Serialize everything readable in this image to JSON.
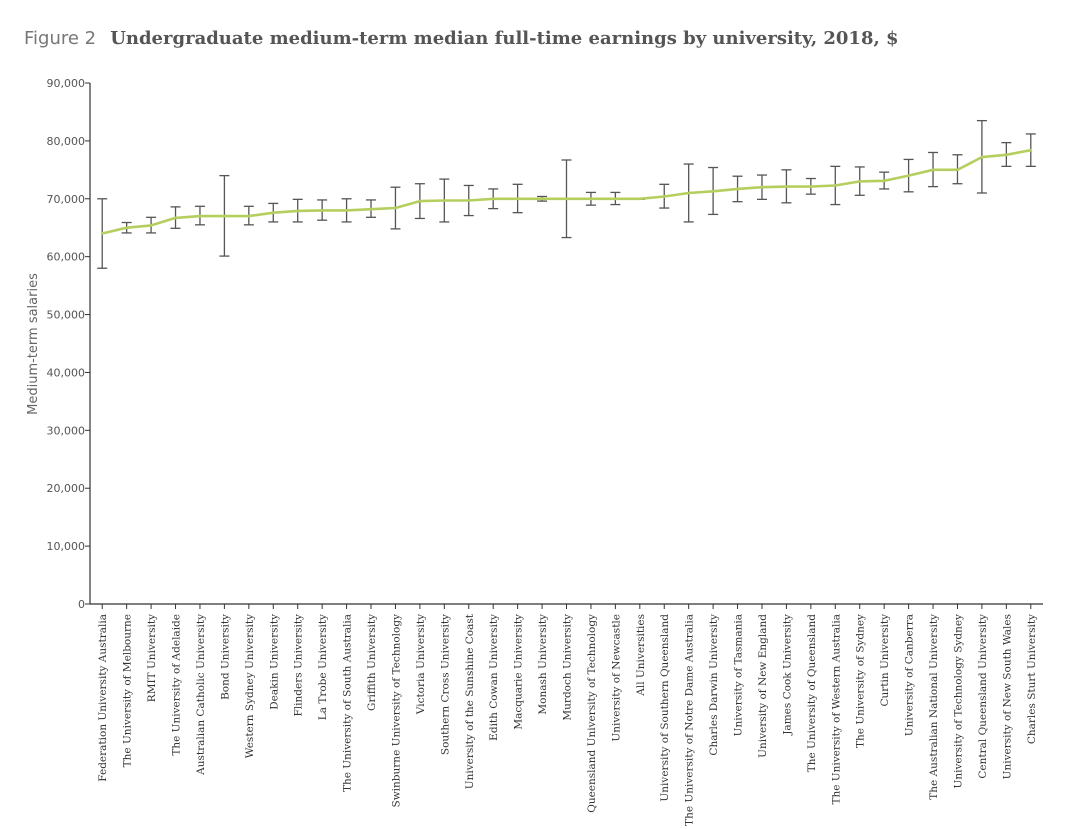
{
  "figure": {
    "label": "Figure 2",
    "title": "Undergraduate medium-term median full-time earnings by university, 2018, $"
  },
  "colors": {
    "line": "#b5cf5f",
    "error_bar": "#555555",
    "axis": "#333333"
  },
  "chart_data": {
    "type": "line",
    "title": "Undergraduate medium-term median full-time earnings by university, 2018, $",
    "xlabel": "",
    "ylabel": "Medium-term salaries",
    "ylim": [
      0,
      90000
    ],
    "yticks": [
      0,
      10000,
      20000,
      30000,
      40000,
      50000,
      60000,
      70000,
      80000,
      90000
    ],
    "ytick_labels": [
      "0",
      "10,000",
      "20,000",
      "30,000",
      "40,000",
      "50,000",
      "60,000",
      "70,000",
      "80,000",
      "90,000"
    ],
    "grid": false,
    "categories": [
      "Federation University Australia",
      "The University of Melbourne",
      "RMIT University",
      "The University of Adelaide",
      "Australian Catholic University",
      "Bond University",
      "Western Sydney University",
      "Deakin University",
      "Flinders University",
      "La Trobe University",
      "The University of South Australia",
      "Griffith University",
      "Swinburne University of Technology",
      "Victoria University",
      "Southern Cross University",
      "University of the Sunshine Coast",
      "Edith Cowan University",
      "Macquarie University",
      "Monash University",
      "Murdoch University",
      "Queensland University of Technology",
      "University of Newcastle",
      "All Universities",
      "University of Southern Queensland",
      "The University of Notre Dame Australia",
      "Charles Darwin University",
      "University of Tasmania",
      "University of New England",
      "James Cook University",
      "The University of Queensland",
      "The University of Western Australia",
      "The University of Sydney",
      "Curtin University",
      "University of Canberra",
      "The Australian National University",
      "University of Technology Sydney",
      "Central Queensland University",
      "University of New South Wales",
      "Charles Sturt University"
    ],
    "series": [
      {
        "values": [
          64000,
          65000,
          65400,
          66700,
          67000,
          67000,
          67000,
          67600,
          67900,
          68000,
          68000,
          68200,
          68400,
          69600,
          69700,
          69700,
          70000,
          70000,
          70000,
          70000,
          70000,
          70000,
          70000,
          70400,
          71000,
          71300,
          71700,
          72000,
          72100,
          72100,
          72300,
          73000,
          73100,
          74000,
          75000,
          75000,
          77200,
          77600,
          78400
        ],
        "lower": [
          58000,
          64100,
          64100,
          64900,
          65500,
          60100,
          65500,
          66000,
          66000,
          66300,
          66000,
          66800,
          64800,
          66600,
          66000,
          67100,
          68300,
          67600,
          69600,
          63300,
          68900,
          69000,
          69900,
          68400,
          66000,
          67300,
          69500,
          69900,
          69300,
          70800,
          69000,
          70600,
          71700,
          71200,
          72100,
          72600,
          71000,
          75600,
          75600
        ],
        "upper": [
          70000,
          65900,
          66800,
          68600,
          68700,
          74000,
          68700,
          69200,
          69900,
          69800,
          70000,
          69800,
          72000,
          72600,
          73400,
          72300,
          71700,
          72500,
          70400,
          76700,
          71100,
          71100,
          70100,
          72500,
          76000,
          75400,
          73900,
          74100,
          75000,
          73500,
          75600,
          75500,
          74600,
          76800,
          78000,
          77600,
          83500,
          79700,
          81200
        ]
      }
    ]
  }
}
